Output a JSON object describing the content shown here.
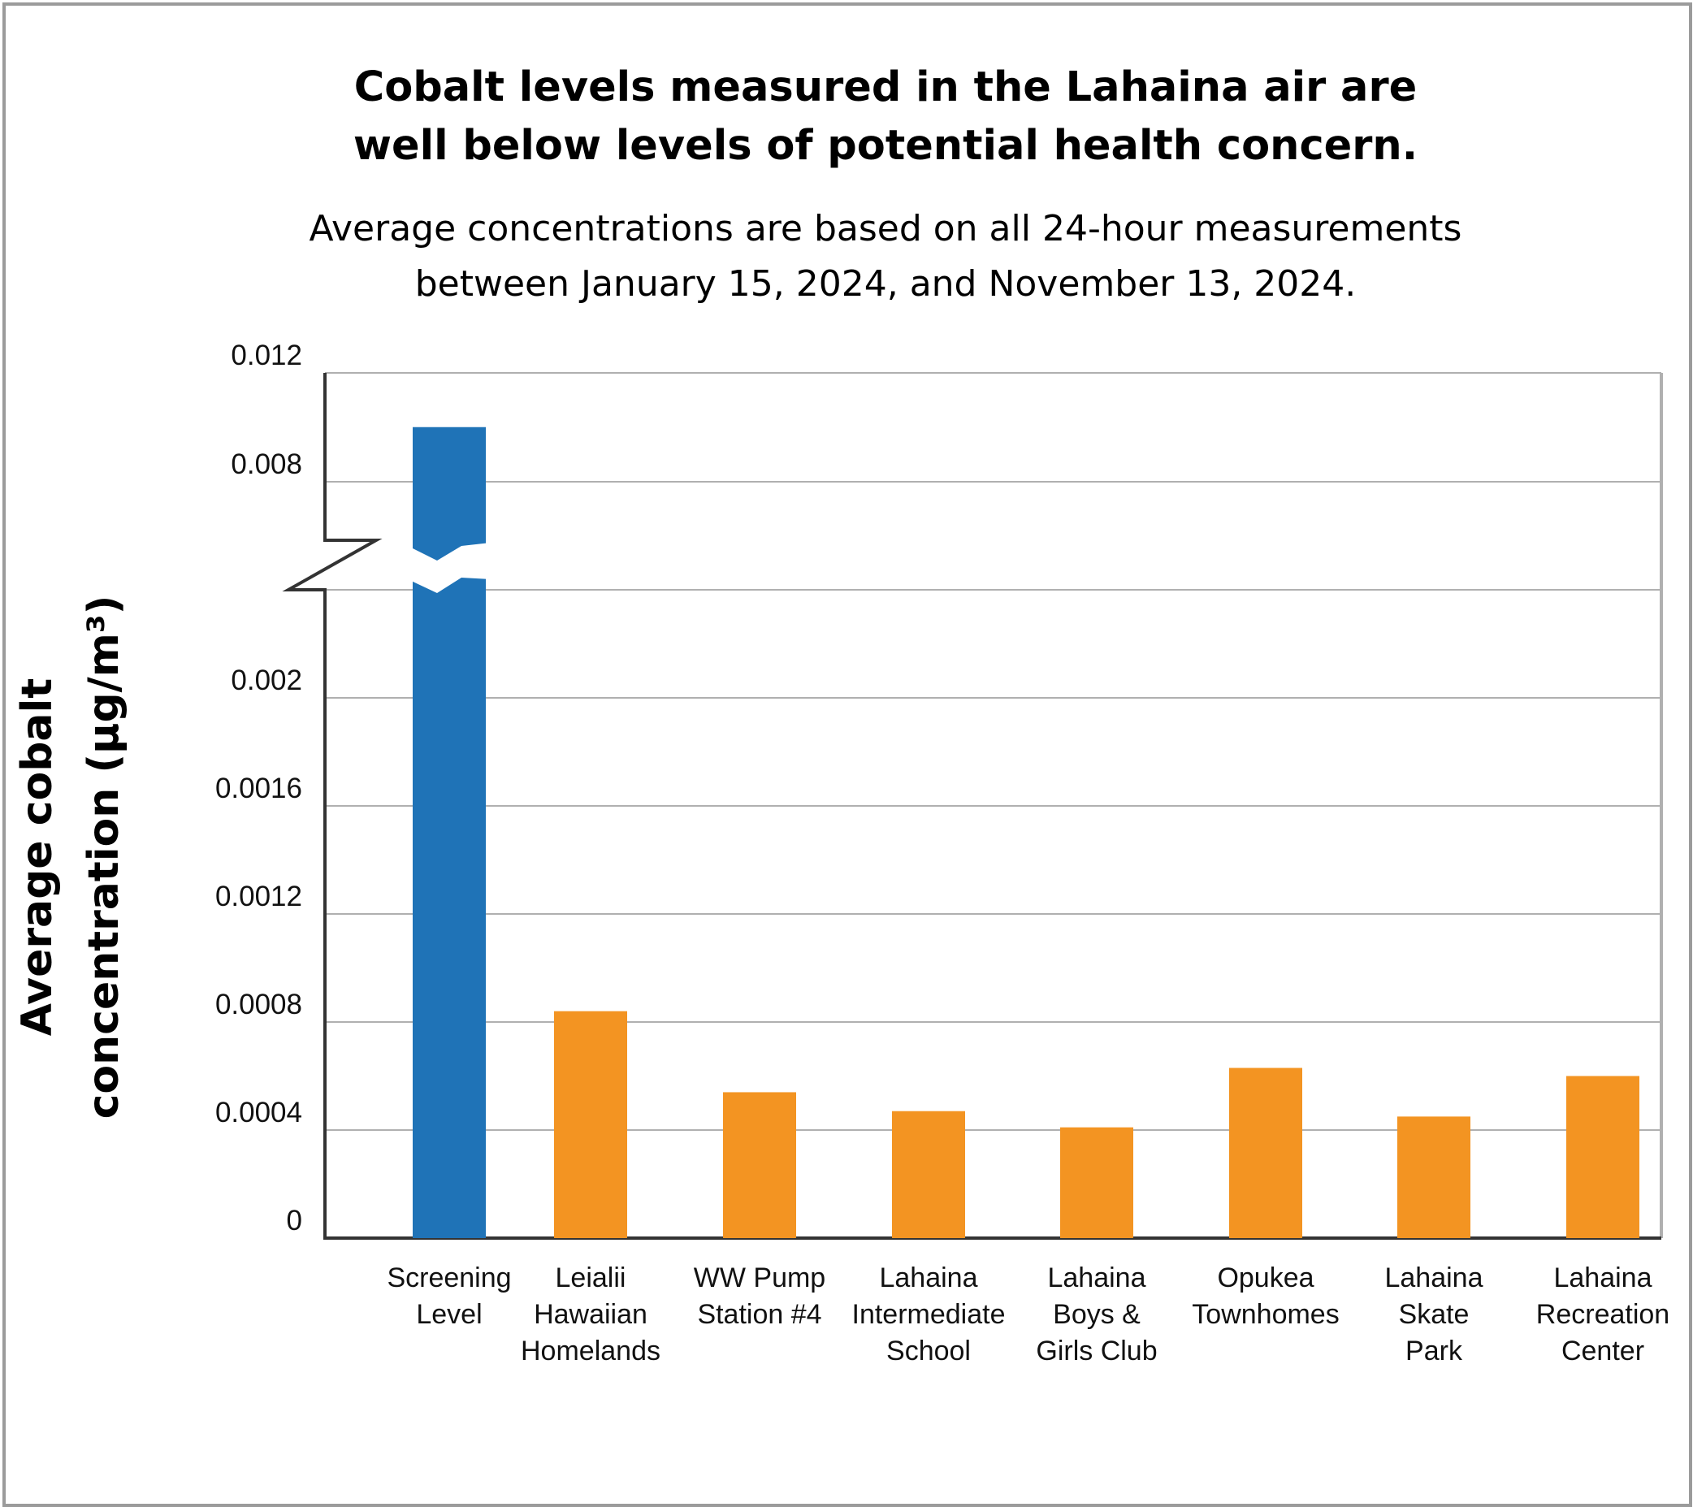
{
  "chart_data": {
    "type": "bar",
    "title_lines": [
      "Cobalt levels measured in the Lahaina air are",
      "well below levels of potential health concern."
    ],
    "subtitle_lines": [
      "Average concentrations are based on all 24-hour measurements",
      "between January 15, 2024, and November 13, 2024."
    ],
    "ylabel_lines": [
      "Average cobalt",
      "concentration (µg/m³)"
    ],
    "y_ticks": [
      "0.012",
      "0.008",
      "0.002",
      "0.0016",
      "0.0012",
      "0.0008",
      "0.0004",
      "0"
    ],
    "axis_break": "between 0.008 and 0.002",
    "grid": true,
    "categories": [
      [
        "Screening",
        "Level"
      ],
      [
        "Leialii",
        "Hawaiian",
        "Homelands"
      ],
      [
        "WW Pump",
        "Station #4"
      ],
      [
        "Lahaina",
        "Intermediate",
        "School"
      ],
      [
        "Lahaina",
        "Boys &",
        "Girls Club"
      ],
      [
        "Opukea",
        "Townhomes"
      ],
      [
        "Lahaina",
        "Skate",
        "Park"
      ],
      [
        "Lahaina",
        "Recreation",
        "Center"
      ]
    ],
    "values": [
      0.01,
      0.00084,
      0.00054,
      0.00047,
      0.00041,
      0.00063,
      0.00045,
      0.0006
    ],
    "colors": {
      "screening": "#1f73b7",
      "measured": "#f39422",
      "grid": "#b0b0b0",
      "axis": "#333333"
    }
  }
}
